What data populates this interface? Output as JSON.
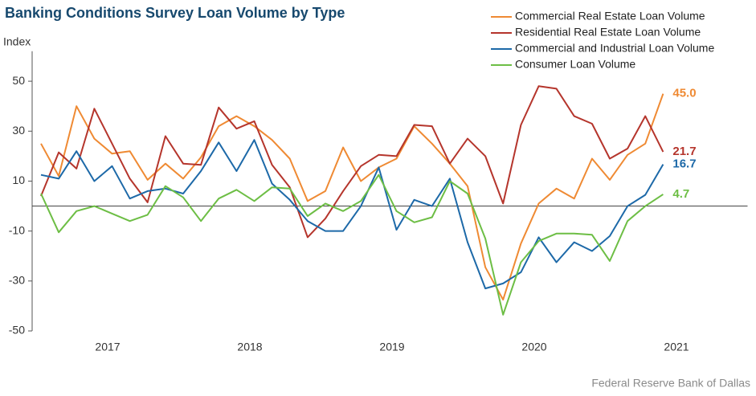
{
  "chart_data": {
    "type": "line",
    "title": "Banking Conditions Survey Loan Volume by Type",
    "y_axis_label": "Index",
    "source": "Federal Reserve Bank of Dallas",
    "x": [
      2017.031,
      2017.156,
      2017.281,
      2017.406,
      2017.531,
      2017.656,
      2017.781,
      2017.906,
      2018.031,
      2018.156,
      2018.281,
      2018.406,
      2018.531,
      2018.656,
      2018.781,
      2018.906,
      2019.031,
      2019.156,
      2019.281,
      2019.406,
      2019.531,
      2019.656,
      2019.781,
      2019.906,
      2020.031,
      2020.156,
      2020.281,
      2020.406,
      2020.531,
      2020.656,
      2020.781,
      2020.906,
      2021.031,
      2021.156,
      2021.281,
      2021.406
    ],
    "xlim": [
      2017,
      2022
    ],
    "xticks": [
      {
        "value": 2017.5,
        "label": "2017"
      },
      {
        "value": 2018.5,
        "label": "2018"
      },
      {
        "value": 2019.5,
        "label": "2019"
      },
      {
        "value": 2020.5,
        "label": "2020"
      },
      {
        "value": 2021.5,
        "label": "2021"
      }
    ],
    "ylim": [
      -50,
      62
    ],
    "yticks": [
      -50,
      -30,
      -10,
      10,
      30,
      50
    ],
    "legend": "top-right",
    "series": [
      {
        "name": "Commercial Real Estate Loan Volume",
        "color": "#ef8a33",
        "values": [
          25,
          12,
          40,
          27,
          21,
          22,
          10.5,
          17,
          11,
          19.5,
          32,
          36,
          32,
          26.5,
          19,
          2,
          6,
          23.5,
          10,
          15.5,
          19,
          32,
          25,
          17,
          8,
          -24.5,
          -37.5,
          -15,
          1,
          7,
          3,
          19,
          10.5,
          20.5,
          25,
          45.0
        ],
        "value_labels": [
          null,
          null,
          null,
          null,
          null,
          null,
          null,
          null,
          null,
          null,
          null,
          null,
          null,
          null,
          null,
          null,
          null,
          null,
          null,
          null,
          null,
          null,
          null,
          null,
          null,
          null,
          null,
          null,
          null,
          null,
          null,
          null,
          null,
          null,
          null,
          "45.0"
        ]
      },
      {
        "name": "Residential Real Estate Loan Volume",
        "color": "#b5352c",
        "values": [
          4,
          21.5,
          15,
          39,
          25,
          11,
          1.5,
          28,
          17,
          16.5,
          39.5,
          31,
          34,
          16.5,
          7.5,
          -12.5,
          -5,
          6,
          16,
          20.5,
          20,
          32.5,
          32,
          17,
          27,
          20,
          1,
          32.5,
          48,
          47,
          36,
          33,
          19,
          23,
          36,
          21.7
        ],
        "value_labels": [
          null,
          null,
          null,
          null,
          null,
          null,
          null,
          null,
          null,
          null,
          null,
          null,
          null,
          null,
          null,
          null,
          null,
          null,
          null,
          null,
          null,
          null,
          null,
          null,
          null,
          null,
          null,
          null,
          null,
          null,
          null,
          null,
          null,
          null,
          null,
          "21.7"
        ]
      },
      {
        "name": "Commercial and Industrial Loan Volume",
        "color": "#1d69a8",
        "values": [
          12.5,
          11,
          22,
          10,
          16,
          3,
          6,
          7,
          5,
          14,
          25.5,
          14,
          26.5,
          9,
          2.5,
          -6,
          -10,
          -10,
          0,
          15.5,
          -9.5,
          2.5,
          0,
          11,
          -14.5,
          -33,
          -31,
          -26.5,
          -12.5,
          -22.5,
          -14.5,
          -18,
          -12,
          0,
          4.5,
          16.7
        ],
        "value_labels": [
          null,
          null,
          null,
          null,
          null,
          null,
          null,
          null,
          null,
          null,
          null,
          null,
          null,
          null,
          null,
          null,
          null,
          null,
          null,
          null,
          null,
          null,
          null,
          null,
          null,
          null,
          null,
          null,
          null,
          null,
          null,
          null,
          null,
          null,
          null,
          "16.7"
        ]
      },
      {
        "name": "Consumer Loan Volume",
        "color": "#6dbe45",
        "values": [
          5,
          -10.5,
          -2,
          0,
          -3,
          -6,
          -3.5,
          8,
          3.5,
          -6,
          3,
          6.5,
          2,
          7.5,
          7,
          -4,
          1,
          -2,
          2,
          12.5,
          -2,
          -6.5,
          -4.5,
          10,
          5,
          -13,
          -43.5,
          -22.5,
          -14,
          -11,
          -11,
          -11.5,
          -22,
          -6,
          0,
          4.7
        ],
        "value_labels": [
          null,
          null,
          null,
          null,
          null,
          null,
          null,
          null,
          null,
          null,
          null,
          null,
          null,
          null,
          null,
          null,
          null,
          null,
          null,
          null,
          null,
          null,
          null,
          null,
          null,
          null,
          null,
          null,
          null,
          null,
          null,
          null,
          null,
          null,
          null,
          "4.7"
        ]
      }
    ]
  }
}
